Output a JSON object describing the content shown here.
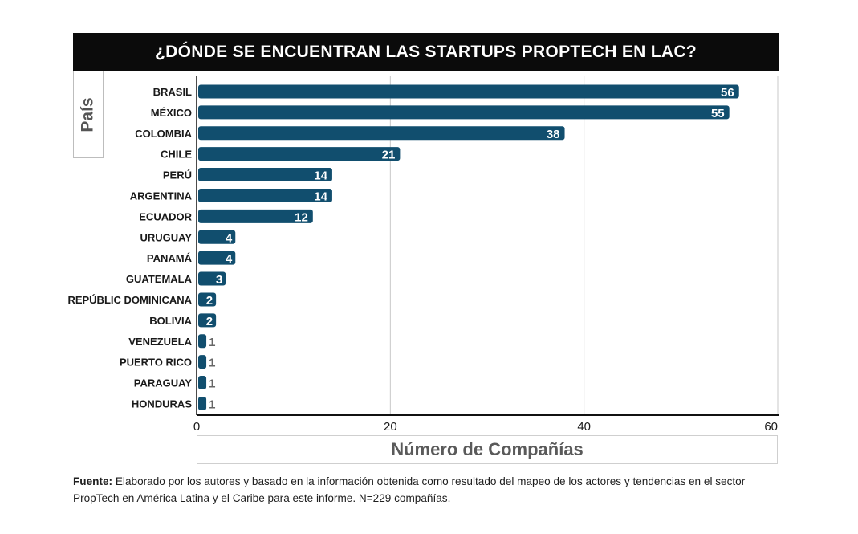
{
  "chart_data": {
    "type": "bar",
    "orientation": "horizontal",
    "title": "¿DÓNDE SE ENCUENTRAN  LAS STARTUPS PROPTECH EN LAC?",
    "ylabel": "País",
    "xlabel": "Número de Compañías",
    "categories": [
      "BRASIL",
      "MÉXICO",
      "COLOMBIA",
      "CHILE",
      "PERÚ",
      "ARGENTINA",
      "ECUADOR",
      "URUGUAY",
      "PANAMÁ",
      "GUATEMALA",
      "REPÚBLIC DOMINICANA",
      "BOLIVIA",
      "VENEZUELA",
      "PUERTO RICO",
      "PARAGUAY",
      "HONDURAS"
    ],
    "values": [
      56,
      55,
      38,
      21,
      14,
      14,
      12,
      4,
      4,
      3,
      2,
      2,
      1,
      1,
      1,
      1
    ],
    "xlim": [
      0,
      60
    ],
    "xticks": [
      0,
      20,
      40,
      60
    ],
    "grid": true,
    "bar_color": "#114e6e",
    "grid_color": "#c8c8c8"
  },
  "source": {
    "label": "Fuente:",
    "text": " Elaborado por los autores y basado en la información obtenida como resultado del mapeo de los actores y tendencias en el sector PropTech en América Latina y el Caribe para este informe. N=229 compañías."
  }
}
